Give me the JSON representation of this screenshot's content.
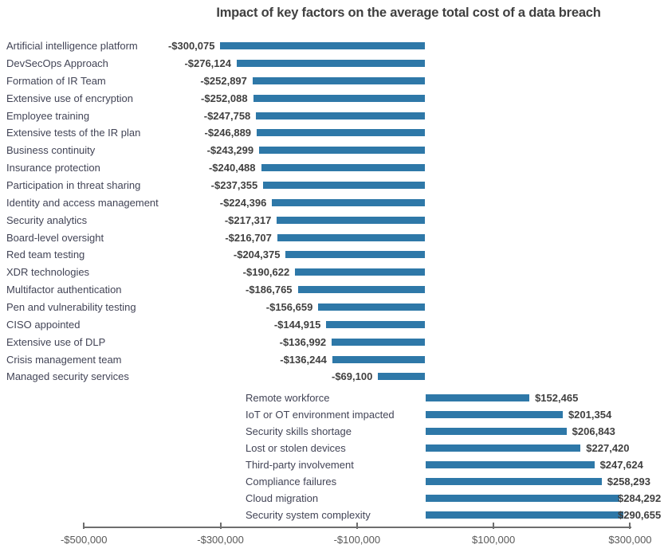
{
  "chart_data": {
    "type": "bar",
    "orientation": "horizontal",
    "title": "Impact of key factors on the average total cost of a data breach",
    "unit": "USD",
    "bar_color": "#2E78A8",
    "axis_range": [
      -500000,
      300000
    ],
    "axis_ticks": [
      {
        "value": -500000,
        "label": "-$500,000"
      },
      {
        "value": -300000,
        "label": "-$300,000"
      },
      {
        "value": -100000,
        "label": "-$100,000"
      },
      {
        "value": 100000,
        "label": "$100,000"
      },
      {
        "value": 300000,
        "label": "$300,000"
      }
    ],
    "decreasing_factors": [
      {
        "label": "Artificial intelligence platform",
        "value": -300075,
        "display": "-$300,075"
      },
      {
        "label": "DevSecOps Approach",
        "value": -276124,
        "display": "-$276,124"
      },
      {
        "label": "Formation of IR Team",
        "value": -252897,
        "display": "-$252,897"
      },
      {
        "label": "Extensive use of encryption",
        "value": -252088,
        "display": "-$252,088"
      },
      {
        "label": "Employee training",
        "value": -247758,
        "display": "-$247,758"
      },
      {
        "label": "Extensive tests of the IR plan",
        "value": -246889,
        "display": "-$246,889"
      },
      {
        "label": "Business continuity",
        "value": -243299,
        "display": "-$243,299"
      },
      {
        "label": "Insurance protection",
        "value": -240488,
        "display": "-$240,488"
      },
      {
        "label": "Participation in threat sharing",
        "value": -237355,
        "display": "-$237,355"
      },
      {
        "label": "Identity and access management",
        "value": -224396,
        "display": "-$224,396"
      },
      {
        "label": "Security analytics",
        "value": -217317,
        "display": "-$217,317"
      },
      {
        "label": "Board-level oversight",
        "value": -216707,
        "display": "-$216,707"
      },
      {
        "label": "Red team testing",
        "value": -204375,
        "display": "-$204,375"
      },
      {
        "label": "XDR technologies",
        "value": -190622,
        "display": "-$190,622"
      },
      {
        "label": "Multifactor authentication",
        "value": -186765,
        "display": "-$186,765"
      },
      {
        "label": "Pen and vulnerability testing",
        "value": -156659,
        "display": "-$156,659"
      },
      {
        "label": "CISO appointed",
        "value": -144915,
        "display": "-$144,915"
      },
      {
        "label": "Extensive use of DLP",
        "value": -136992,
        "display": "-$136,992"
      },
      {
        "label": "Crisis management team",
        "value": -136244,
        "display": "-$136,244"
      },
      {
        "label": "Managed security services",
        "value": -69100,
        "display": "-$69,100"
      }
    ],
    "increasing_factors": [
      {
        "label": "Remote workforce",
        "value": 152465,
        "display": "$152,465"
      },
      {
        "label": "IoT or OT environment impacted",
        "value": 201354,
        "display": "$201,354"
      },
      {
        "label": "Security skills shortage",
        "value": 206843,
        "display": "$206,843"
      },
      {
        "label": "Lost or stolen devices",
        "value": 227420,
        "display": "$227,420"
      },
      {
        "label": "Third-party involvement",
        "value": 247624,
        "display": "$247,624"
      },
      {
        "label": "Compliance failures",
        "value": 258293,
        "display": "$258,293"
      },
      {
        "label": "Cloud migration",
        "value": 284292,
        "display": "$284,292"
      },
      {
        "label": "Security system complexity",
        "value": 290655,
        "display": "$290,655"
      }
    ]
  },
  "colors": {
    "bar": "#2E78A8",
    "title_text": "#404040",
    "category_text": "#424456",
    "value_text": "#404040",
    "axis": "#6E6E6E",
    "axis_label_text": "#595959"
  }
}
